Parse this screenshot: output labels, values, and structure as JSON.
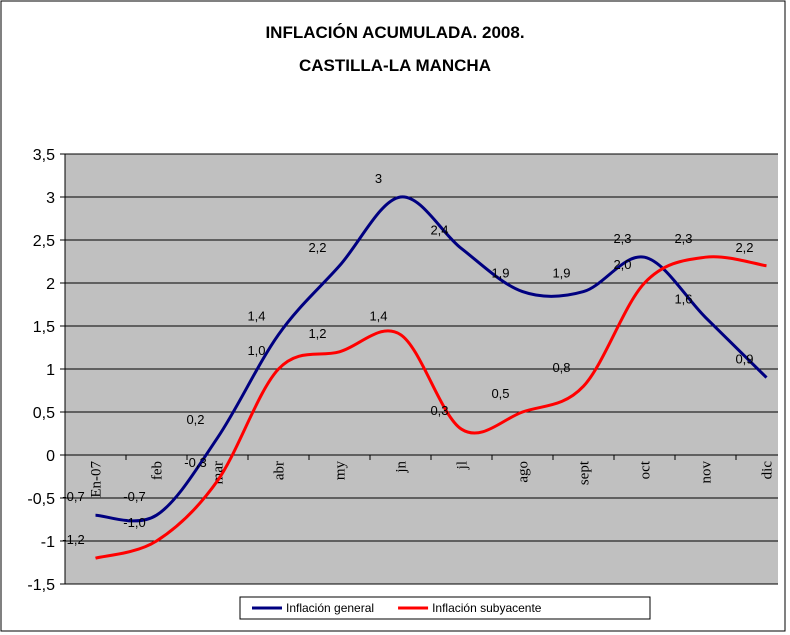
{
  "chart_data": {
    "type": "line",
    "title": "INFLACIÓN ACUMULADA. 2008.",
    "subtitle": "CASTILLA-LA MANCHA",
    "categories": [
      "En-07",
      "feb",
      "mar",
      "abr",
      "my",
      "jn",
      "jl",
      "ago",
      "sept",
      "oct",
      "nov",
      "dic"
    ],
    "series": [
      {
        "name": "Inflación general",
        "color": "#000080",
        "values": [
          -0.7,
          -0.7,
          0.2,
          1.4,
          2.2,
          3,
          2.4,
          1.9,
          1.9,
          2.3,
          1.6,
          0.9
        ],
        "value_labels": [
          "-0,7",
          "-0,7",
          "0,2",
          "1,4",
          "2,2",
          "3",
          "2,4",
          "1,9",
          "1,9",
          "2,3",
          "1,6",
          "0,9"
        ]
      },
      {
        "name": "Inflación subyacente",
        "color": "#ff0000",
        "values": [
          -1.2,
          -1.0,
          -0.3,
          1.0,
          1.2,
          1.4,
          0.3,
          0.5,
          0.8,
          2.0,
          2.3,
          2.2
        ],
        "value_labels": [
          "-1,2",
          "-1,0",
          "-0,3",
          "1,0",
          "1,2",
          "1,4",
          "0,3",
          "0,5",
          "0,8",
          "2,0",
          "2,3",
          "2,2"
        ]
      }
    ],
    "ylim": [
      -1.5,
      3.5
    ],
    "yticks": [
      {
        "value": -1.5,
        "label": "-1,5"
      },
      -1,
      {
        "value": -0.5,
        "label": "-0,5"
      },
      0,
      {
        "value": 0.5,
        "label": "0,5"
      },
      1,
      {
        "value": 1.5,
        "label": "1,5"
      },
      2,
      {
        "value": 2.5,
        "label": "2,5"
      },
      3,
      {
        "value": 3.5,
        "label": "3,5"
      }
    ],
    "grid": true,
    "legend": "bottom"
  }
}
